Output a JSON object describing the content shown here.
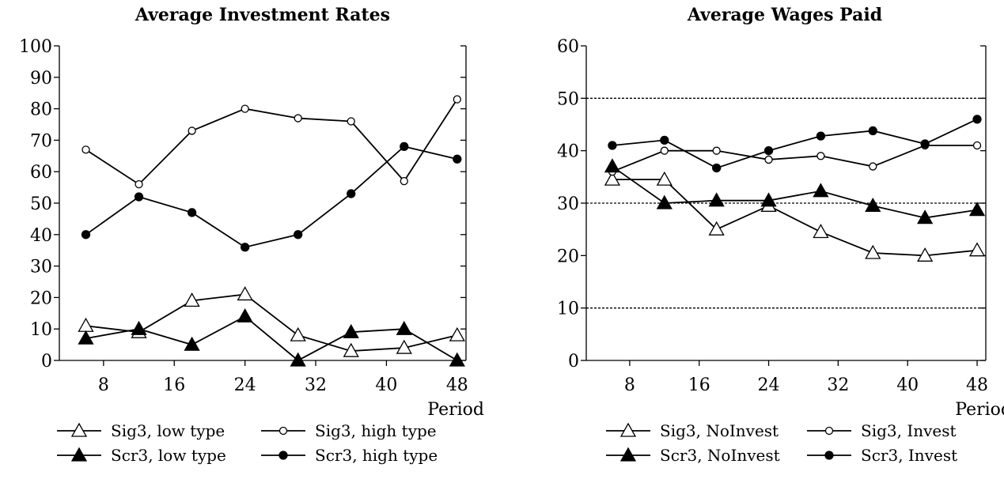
{
  "chart_data": [
    {
      "type": "line",
      "title": "Average Investment Rates",
      "xlabel": "Period",
      "ylabel": "",
      "xlim": [
        3,
        49
      ],
      "ylim": [
        0,
        100
      ],
      "xticks": [
        8,
        16,
        24,
        32,
        40,
        48
      ],
      "yticks": [
        0,
        10,
        20,
        30,
        40,
        50,
        60,
        70,
        80,
        90,
        100
      ],
      "grid": false,
      "ref_lines": [],
      "legend_position": "bottom",
      "series": [
        {
          "name": "Sig3, low type",
          "marker": "triangle-open",
          "x": [
            6,
            12,
            18,
            24,
            30,
            36,
            42,
            48
          ],
          "y": [
            11,
            9,
            19,
            21,
            8,
            3,
            4,
            8
          ]
        },
        {
          "name": "Sig3, high type",
          "marker": "circle-open",
          "x": [
            6,
            12,
            18,
            24,
            30,
            36,
            42,
            48
          ],
          "y": [
            67,
            56,
            73,
            80,
            77,
            76,
            57,
            83
          ]
        },
        {
          "name": "Scr3, low type",
          "marker": "triangle-filled",
          "x": [
            6,
            12,
            18,
            24,
            30,
            36,
            42,
            48
          ],
          "y": [
            7,
            10,
            5,
            14,
            0,
            9,
            10,
            0
          ]
        },
        {
          "name": "Scr3, high type",
          "marker": "circle-filled",
          "x": [
            6,
            12,
            18,
            24,
            30,
            36,
            42,
            48
          ],
          "y": [
            40,
            52,
            47,
            36,
            40,
            53,
            68,
            64
          ]
        }
      ]
    },
    {
      "type": "line",
      "title": "Average Wages Paid",
      "xlabel": "Period",
      "ylabel": "",
      "xlim": [
        3,
        49
      ],
      "ylim": [
        0,
        60
      ],
      "xticks": [
        8,
        16,
        24,
        32,
        40,
        48
      ],
      "yticks": [
        0,
        10,
        20,
        30,
        40,
        50,
        60
      ],
      "grid": false,
      "ref_lines": [
        10,
        30,
        50
      ],
      "legend_position": "bottom",
      "series": [
        {
          "name": "Sig3, NoInvest",
          "marker": "triangle-open",
          "x": [
            6,
            12,
            18,
            24,
            30,
            36,
            42,
            48
          ],
          "y": [
            34.5,
            34.5,
            25,
            29.5,
            24.5,
            20.5,
            20,
            21
          ]
        },
        {
          "name": "Sig3, Invest",
          "marker": "circle-open",
          "x": [
            6,
            12,
            18,
            24,
            30,
            36,
            42,
            48
          ],
          "y": [
            36,
            40,
            40,
            38.3,
            39,
            37,
            41,
            41
          ]
        },
        {
          "name": "Scr3, NoInvest",
          "marker": "triangle-filled",
          "x": [
            6,
            12,
            18,
            24,
            30,
            36,
            42,
            48
          ],
          "y": [
            37,
            30,
            30.5,
            30.5,
            32.3,
            29.5,
            27.2,
            28.7
          ]
        },
        {
          "name": "Scr3, Invest",
          "marker": "circle-filled",
          "x": [
            6,
            12,
            18,
            24,
            30,
            36,
            42,
            48
          ],
          "y": [
            41,
            42,
            36.7,
            40,
            42.8,
            43.8,
            41.3,
            46
          ]
        }
      ]
    }
  ]
}
